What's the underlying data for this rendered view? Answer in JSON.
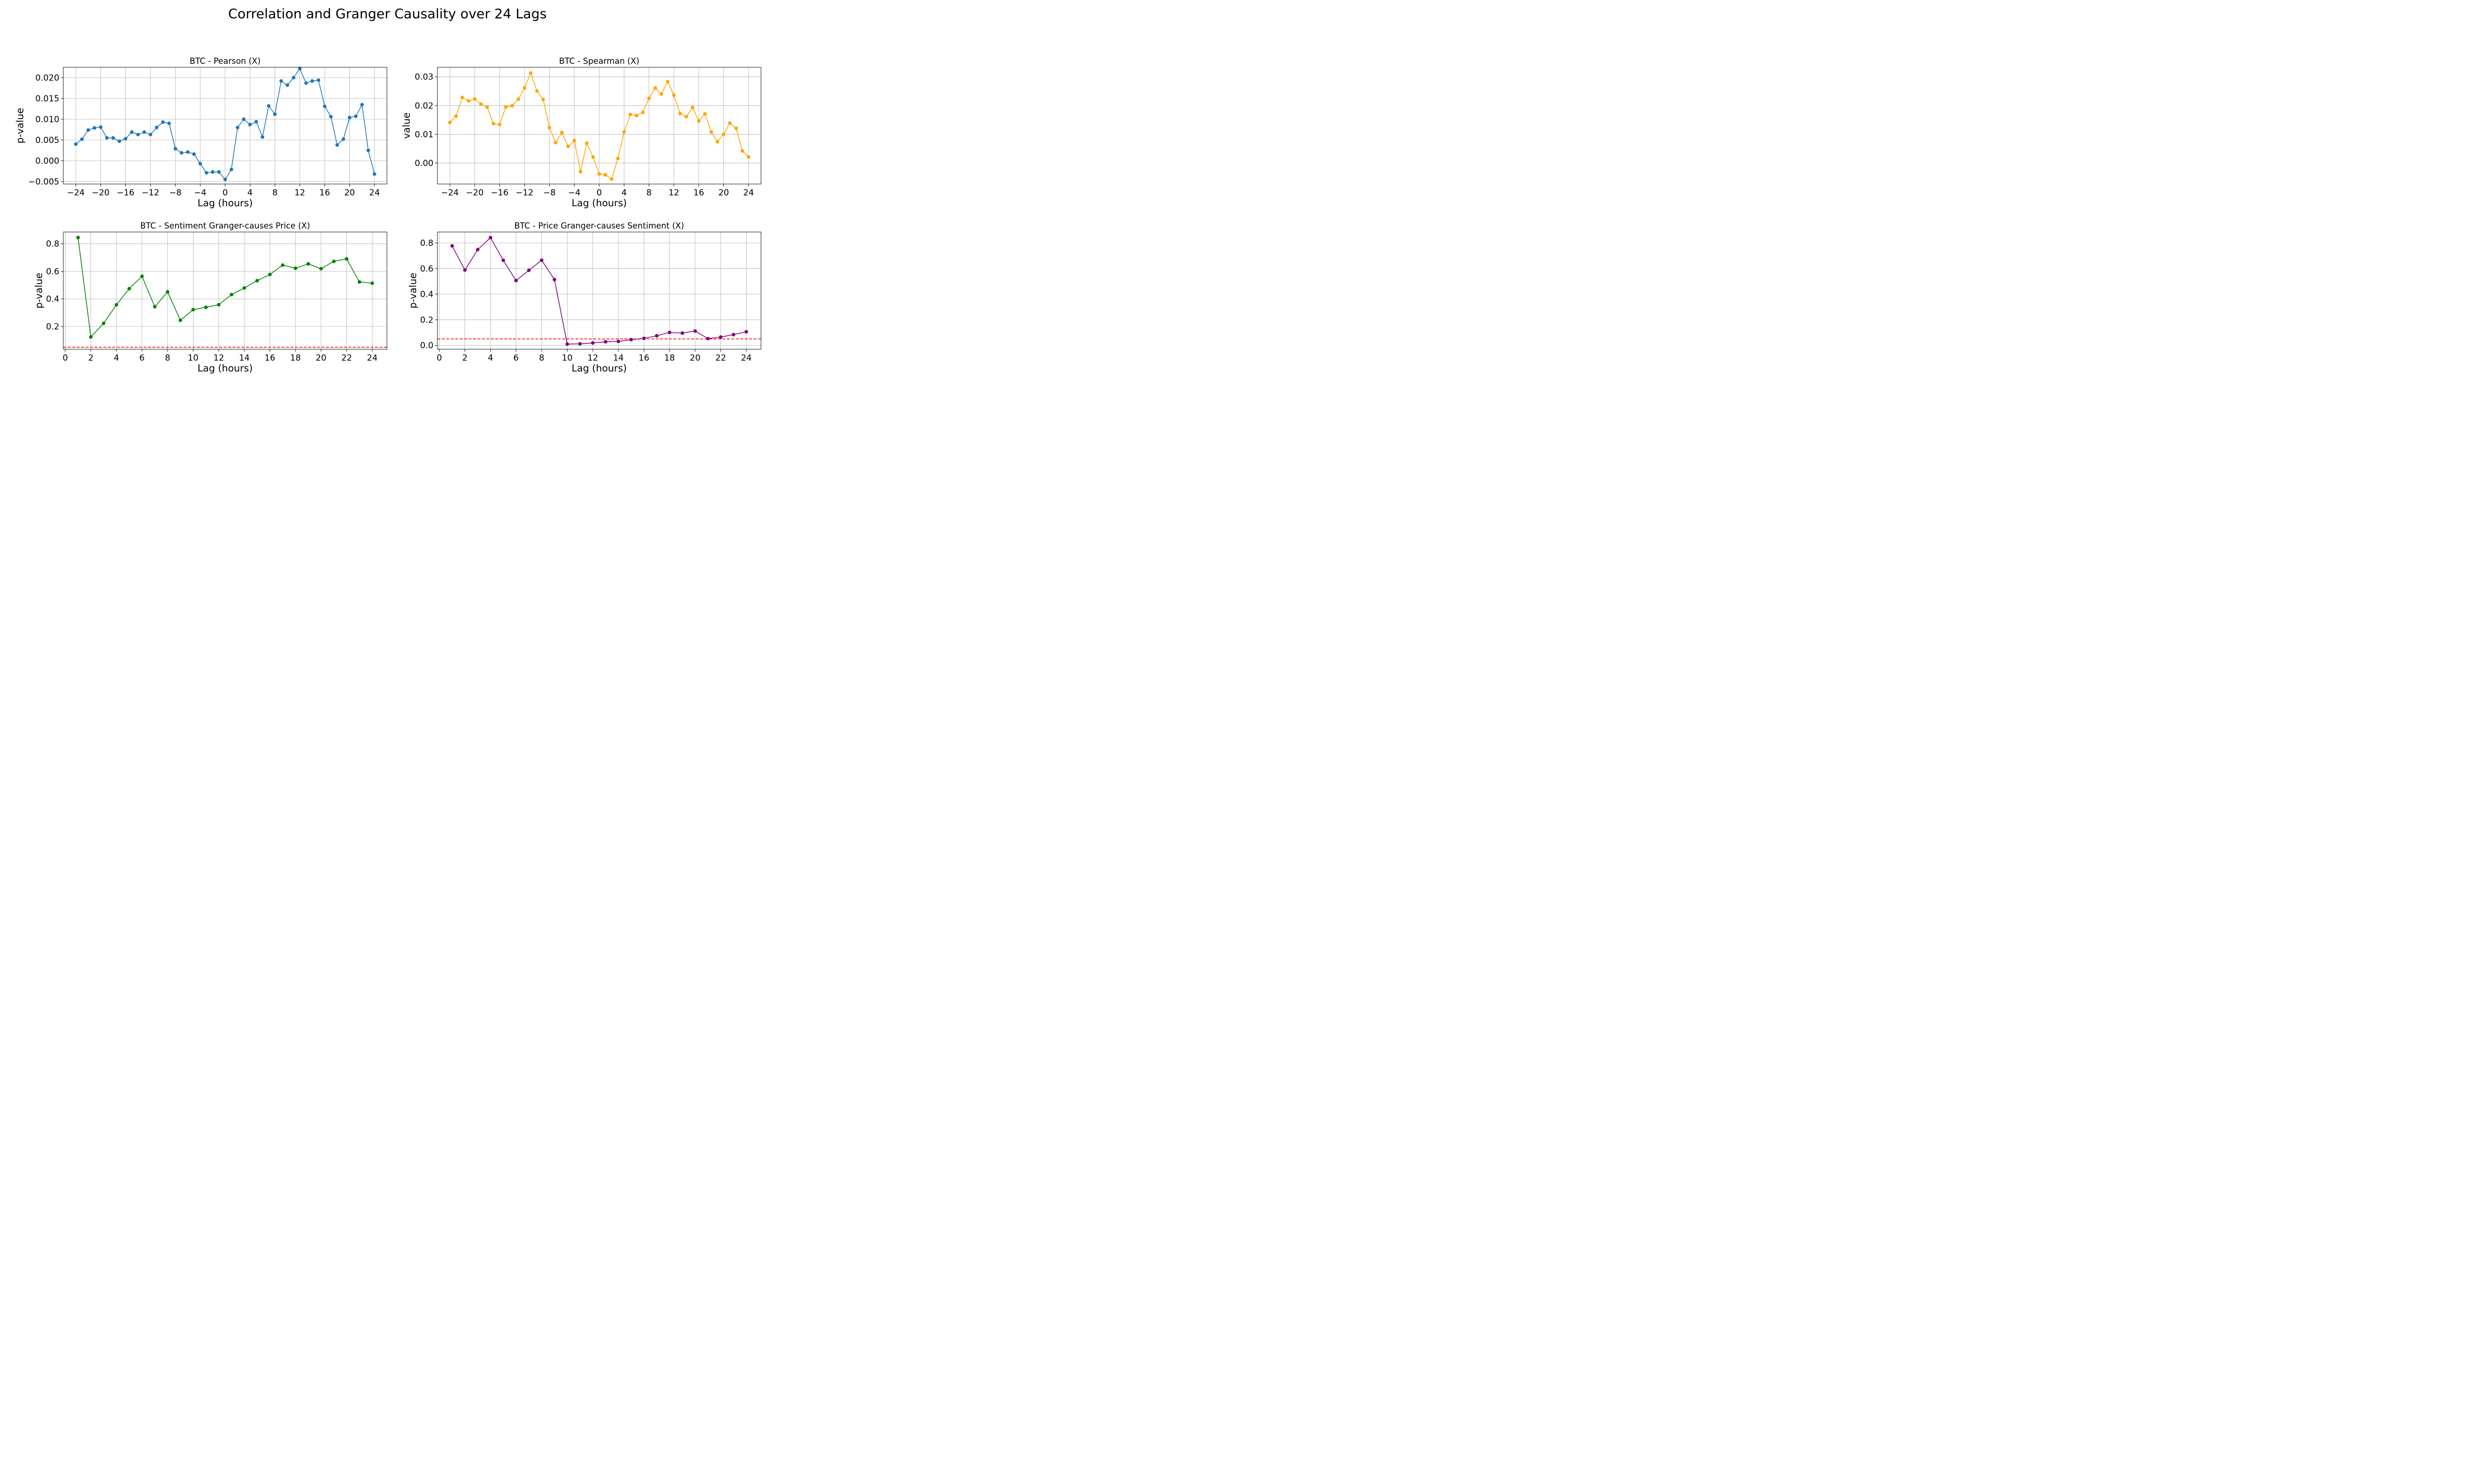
{
  "figure": {
    "title": "Correlation and Granger Causality over 24 Lags"
  },
  "chart_data": [
    {
      "type": "line",
      "title": "BTC - Pearson (X)",
      "xlabel": "Lag (hours)",
      "ylabel": "p-value",
      "color": "#1f77b4",
      "xlim": [
        -26,
        26
      ],
      "ylim": [
        -0.0056,
        0.0225
      ],
      "xticks": [
        -24,
        -20,
        -16,
        -12,
        -8,
        -4,
        0,
        4,
        8,
        12,
        16,
        20,
        24
      ],
      "yticks": [
        -0.005,
        0.0,
        0.005,
        0.01,
        0.015,
        0.02
      ],
      "ytick_labels": [
        "−0.005",
        "0.000",
        "0.005",
        "0.010",
        "0.015",
        "0.020"
      ],
      "grid": true,
      "x": [
        -24,
        -23,
        -22,
        -21,
        -20,
        -19,
        -18,
        -17,
        -16,
        -15,
        -14,
        -13,
        -12,
        -11,
        -10,
        -9,
        -8,
        -7,
        -6,
        -5,
        -4,
        -3,
        -2,
        -1,
        0,
        1,
        2,
        3,
        4,
        5,
        6,
        7,
        8,
        9,
        10,
        11,
        12,
        13,
        14,
        15,
        16,
        17,
        18,
        19,
        20,
        21,
        22,
        23,
        24
      ],
      "y": [
        0.004,
        0.0052,
        0.0074,
        0.0079,
        0.0081,
        0.0055,
        0.0055,
        0.0047,
        0.0053,
        0.0069,
        0.0063,
        0.0069,
        0.0063,
        0.008,
        0.0093,
        0.009,
        0.0029,
        0.0019,
        0.0021,
        0.0016,
        -0.0007,
        -0.0029,
        -0.0027,
        -0.0027,
        -0.0045,
        -0.0021,
        0.008,
        0.01,
        0.0087,
        0.0094,
        0.0057,
        0.0132,
        0.0112,
        0.0192,
        0.0182,
        0.02,
        0.0222,
        0.0187,
        0.0192,
        0.0194,
        0.0131,
        0.0106,
        0.0038,
        0.0052,
        0.0104,
        0.0107,
        0.0135,
        0.0025,
        -0.0032
      ]
    },
    {
      "type": "line",
      "title": "BTC - Spearman (X)",
      "xlabel": "Lag (hours)",
      "ylabel": "value",
      "color": "#ffa500",
      "xlim": [
        -26,
        26
      ],
      "ylim": [
        -0.0073,
        0.0333
      ],
      "xticks": [
        -24,
        -20,
        -16,
        -12,
        -8,
        -4,
        0,
        4,
        8,
        12,
        16,
        20,
        24
      ],
      "yticks": [
        0.0,
        0.01,
        0.02,
        0.03
      ],
      "ytick_labels": [
        "0.00",
        "0.01",
        "0.02",
        "0.03"
      ],
      "grid": true,
      "x": [
        -24,
        -23,
        -22,
        -21,
        -20,
        -19,
        -18,
        -17,
        -16,
        -15,
        -14,
        -13,
        -12,
        -11,
        -10,
        -9,
        -8,
        -7,
        -6,
        -5,
        -4,
        -3,
        -2,
        -1,
        0,
        1,
        2,
        3,
        4,
        5,
        6,
        7,
        8,
        9,
        10,
        11,
        12,
        13,
        14,
        15,
        16,
        17,
        18,
        19,
        20,
        21,
        22,
        23,
        24
      ],
      "y": [
        0.0141,
        0.0163,
        0.0228,
        0.0216,
        0.0223,
        0.0205,
        0.0194,
        0.0137,
        0.0134,
        0.0195,
        0.0199,
        0.0222,
        0.0261,
        0.0313,
        0.025,
        0.0221,
        0.0123,
        0.0071,
        0.0106,
        0.0058,
        0.0078,
        -0.003,
        0.0069,
        0.0021,
        -0.0038,
        -0.0041,
        -0.0056,
        0.0016,
        0.0108,
        0.0169,
        0.0165,
        0.0176,
        0.0225,
        0.0261,
        0.024,
        0.0283,
        0.0236,
        0.0172,
        0.0161,
        0.0193,
        0.0146,
        0.0171,
        0.0108,
        0.0074,
        0.01,
        0.0139,
        0.0121,
        0.0042,
        0.0021
      ]
    },
    {
      "type": "line",
      "title": "BTC - Sentiment Granger-causes Price (X)",
      "xlabel": "Lag (hours)",
      "ylabel": "p-value",
      "color": "#008000",
      "xlim": [
        -0.15,
        25.15
      ],
      "ylim": [
        0.035,
        0.885
      ],
      "xticks": [
        0,
        2,
        4,
        6,
        8,
        10,
        12,
        14,
        16,
        18,
        20,
        22,
        24
      ],
      "yticks": [
        0.2,
        0.4,
        0.6,
        0.8
      ],
      "ytick_labels": [
        "0.2",
        "0.4",
        "0.6",
        "0.8"
      ],
      "grid": true,
      "reference_line": 0.05,
      "x": [
        1,
        2,
        3,
        4,
        5,
        6,
        7,
        8,
        9,
        10,
        11,
        12,
        13,
        14,
        15,
        16,
        17,
        18,
        19,
        20,
        21,
        22,
        23,
        24
      ],
      "y": [
        0.845,
        0.124,
        0.223,
        0.357,
        0.474,
        0.564,
        0.343,
        0.451,
        0.245,
        0.322,
        0.339,
        0.358,
        0.431,
        0.479,
        0.532,
        0.577,
        0.645,
        0.622,
        0.654,
        0.619,
        0.672,
        0.69,
        0.523,
        0.514
      ]
    },
    {
      "type": "line",
      "title": "BTC - Price Granger-causes Sentiment (X)",
      "xlabel": "Lag (hours)",
      "ylabel": "p-value",
      "color": "#800080",
      "xlim": [
        -0.15,
        25.15
      ],
      "ylim": [
        -0.03,
        0.885
      ],
      "xticks": [
        0,
        2,
        4,
        6,
        8,
        10,
        12,
        14,
        16,
        18,
        20,
        22,
        24
      ],
      "yticks": [
        0.0,
        0.2,
        0.4,
        0.6,
        0.8
      ],
      "ytick_labels": [
        "0.0",
        "0.2",
        "0.4",
        "0.6",
        "0.8"
      ],
      "grid": true,
      "reference_line": 0.05,
      "x": [
        1,
        2,
        3,
        4,
        5,
        6,
        7,
        8,
        9,
        10,
        11,
        12,
        13,
        14,
        15,
        16,
        17,
        18,
        19,
        20,
        21,
        22,
        23,
        24
      ],
      "y": [
        0.777,
        0.588,
        0.747,
        0.841,
        0.664,
        0.506,
        0.586,
        0.665,
        0.514,
        0.01,
        0.012,
        0.019,
        0.028,
        0.031,
        0.045,
        0.055,
        0.075,
        0.101,
        0.096,
        0.112,
        0.053,
        0.065,
        0.084,
        0.106
      ]
    }
  ]
}
